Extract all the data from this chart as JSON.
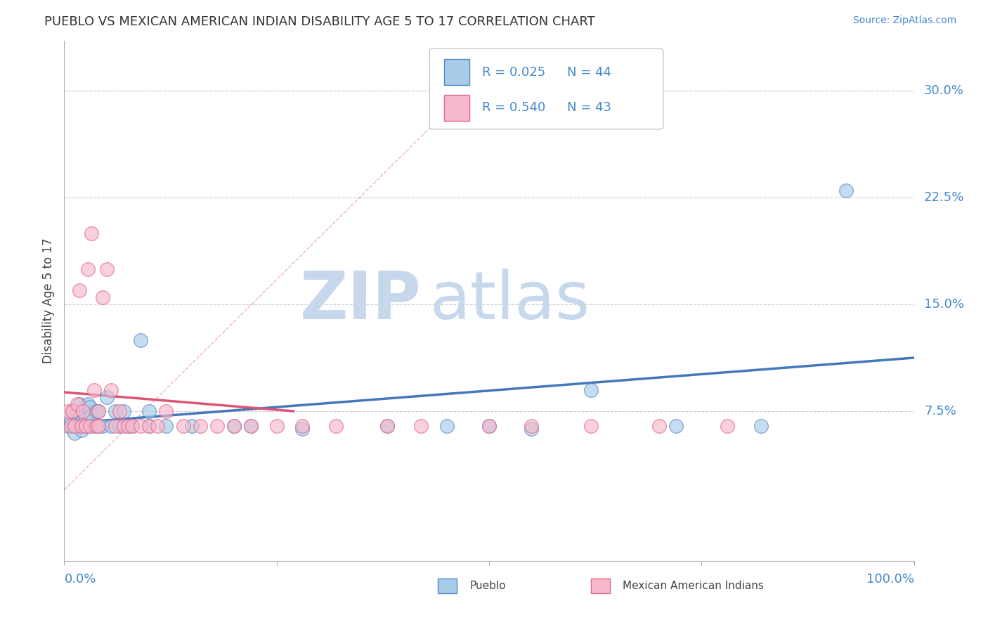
{
  "title": "PUEBLO VS MEXICAN AMERICAN INDIAN DISABILITY AGE 5 TO 17 CORRELATION CHART",
  "source": "Source: ZipAtlas.com",
  "ylabel": "Disability Age 5 to 17",
  "y_ticks": [
    0.0,
    0.075,
    0.15,
    0.225,
    0.3
  ],
  "y_tick_labels": [
    "",
    "7.5%",
    "15.0%",
    "22.5%",
    "30.0%"
  ],
  "xlim": [
    0.0,
    1.0
  ],
  "ylim": [
    -0.03,
    0.335
  ],
  "legend_pueblo_R": "0.025",
  "legend_pueblo_N": "44",
  "legend_mexican_R": "0.540",
  "legend_mexican_N": "43",
  "pueblo_fill": "#A8CCE8",
  "pueblo_edge": "#5588CC",
  "mexican_fill": "#F8B8CC",
  "mexican_edge": "#E06888",
  "pueblo_regline_color": "#4477BB",
  "mexican_regline_color": "#DD5577",
  "title_color": "#333333",
  "label_color": "#4488CC",
  "source_color": "#4488CC",
  "grid_color": "#CCCCCC",
  "watermark_zip_color": "#C8D8EC",
  "watermark_atlas_color": "#C8D8EC",
  "pueblo_x": [
    0.005,
    0.008,
    0.01,
    0.012,
    0.015,
    0.015,
    0.018,
    0.02,
    0.02,
    0.022,
    0.025,
    0.025,
    0.028,
    0.03,
    0.03,
    0.032,
    0.035,
    0.038,
    0.04,
    0.04,
    0.045,
    0.05,
    0.055,
    0.06,
    0.065,
    0.07,
    0.075,
    0.08,
    0.09,
    0.1,
    0.1,
    0.12,
    0.15,
    0.2,
    0.22,
    0.28,
    0.38,
    0.45,
    0.5,
    0.55,
    0.62,
    0.72,
    0.82,
    0.92
  ],
  "pueblo_y": [
    0.065,
    0.068,
    0.075,
    0.06,
    0.075,
    0.065,
    0.08,
    0.068,
    0.062,
    0.075,
    0.065,
    0.07,
    0.08,
    0.065,
    0.078,
    0.072,
    0.065,
    0.075,
    0.065,
    0.075,
    0.065,
    0.085,
    0.065,
    0.075,
    0.065,
    0.075,
    0.065,
    0.065,
    0.125,
    0.065,
    0.075,
    0.065,
    0.065,
    0.065,
    0.065,
    0.063,
    0.065,
    0.065,
    0.065,
    0.063,
    0.09,
    0.065,
    0.065,
    0.23
  ],
  "mexican_x": [
    0.005,
    0.008,
    0.01,
    0.012,
    0.015,
    0.018,
    0.02,
    0.022,
    0.025,
    0.028,
    0.03,
    0.032,
    0.035,
    0.038,
    0.04,
    0.04,
    0.045,
    0.05,
    0.055,
    0.06,
    0.065,
    0.07,
    0.075,
    0.08,
    0.09,
    0.1,
    0.11,
    0.12,
    0.14,
    0.16,
    0.18,
    0.2,
    0.22,
    0.25,
    0.28,
    0.32,
    0.38,
    0.42,
    0.5,
    0.55,
    0.62,
    0.7,
    0.78
  ],
  "mexican_y": [
    0.075,
    0.065,
    0.075,
    0.065,
    0.08,
    0.16,
    0.065,
    0.075,
    0.065,
    0.175,
    0.065,
    0.2,
    0.09,
    0.065,
    0.075,
    0.065,
    0.155,
    0.175,
    0.09,
    0.065,
    0.075,
    0.065,
    0.065,
    0.065,
    0.065,
    0.065,
    0.065,
    0.075,
    0.065,
    0.065,
    0.065,
    0.065,
    0.065,
    0.065,
    0.065,
    0.065,
    0.065,
    0.065,
    0.065,
    0.065,
    0.065,
    0.065,
    0.065
  ]
}
